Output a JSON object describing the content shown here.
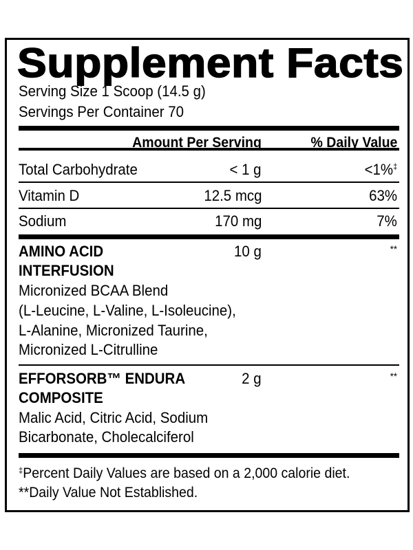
{
  "title": "Supplement Facts",
  "serving_size": "Serving Size 1 Scoop (14.5 g)",
  "servings_per_container": "Servings Per Container 70",
  "header": {
    "amount": "Amount Per Serving",
    "daily_value": "% Daily Value"
  },
  "nutrients": [
    {
      "name": "Total Carbohydrate",
      "amount": "< 1 g",
      "dv": "<1%",
      "dv_mark": "‡"
    },
    {
      "name": "Vitamin D",
      "amount": "12.5 mcg",
      "dv": "63%"
    },
    {
      "name": "Sodium",
      "amount": "170 mg",
      "dv": "7%"
    }
  ],
  "blends": [
    {
      "name_lines": [
        "AMINO ACID",
        "INTERFUSION"
      ],
      "amount": "10 g",
      "dv": "**",
      "ingredients": [
        "Micronized BCAA Blend",
        "(L-Leucine, L-Valine, L-Isoleucine),",
        "L-Alanine, Micronized Taurine,",
        "Micronized L-Citrulline"
      ]
    },
    {
      "name_lines": [
        "EFFORSORB™ ENDURA",
        "COMPOSITE"
      ],
      "amount": "2 g",
      "dv": "**",
      "ingredients": [
        "Malic Acid, Citric Acid, Sodium",
        "Bicarbonate, Cholecalciferol"
      ]
    }
  ],
  "footnotes": {
    "mark": "‡",
    "percent_text": "Percent Daily Values are based on a 2,000 calorie diet.",
    "not_established": "**Daily Value Not Established."
  }
}
